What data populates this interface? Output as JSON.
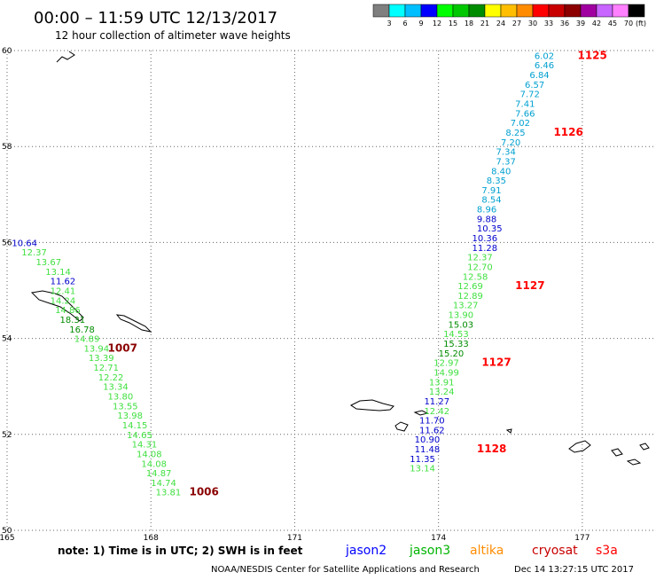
{
  "header": {
    "title": "00:00 – 11:59 UTC 12/13/2017",
    "subtitle": "12 hour collection of altimeter wave heights"
  },
  "colorbar": {
    "unit": "(ft)",
    "colors": [
      "#7f7f7f",
      "#00ffff",
      "#00bfff",
      "#0000ff",
      "#00ff00",
      "#00c800",
      "#008c00",
      "#ffff00",
      "#ffbf00",
      "#ff8c00",
      "#ff0000",
      "#c80000",
      "#8c0000",
      "#a000a0",
      "#c864ff",
      "#ff80ff",
      "#000000"
    ],
    "ticks": [
      "3",
      "6",
      "9",
      "12",
      "15",
      "18",
      "21",
      "24",
      "27",
      "30",
      "33",
      "36",
      "39",
      "42",
      "45",
      "70"
    ]
  },
  "note": "note:  1) Time is in UTC;  2) SWH is in feet",
  "satellites": [
    {
      "name": "jason2",
      "color": "#0000ff"
    },
    {
      "name": "jason3",
      "color": "#00b400"
    },
    {
      "name": "altika",
      "color": "#ff8c00"
    },
    {
      "name": "cryosat",
      "color": "#c80000"
    },
    {
      "name": "s3a",
      "color": "#ff0000"
    }
  ],
  "footer": {
    "credit": "NOAA/NESDIS Center for Satellite Applications and Research",
    "timestamp": "Dec 14 13:27:15 UTC 2017"
  },
  "chart_data": {
    "type": "scatter",
    "xlim": [
      165,
      178.5
    ],
    "ylim": [
      50,
      60
    ],
    "xticks": [
      165,
      168,
      171,
      174,
      177
    ],
    "yticks": [
      50,
      52,
      54,
      56,
      58,
      60
    ],
    "grid": true,
    "tracks": [
      {
        "points": [
          {
            "lon": 165.1,
            "lat": 56.0,
            "value": "10.64",
            "color": "#0000cd"
          },
          {
            "lon": 165.3,
            "lat": 55.8,
            "value": "12.37",
            "color": "#40e040"
          },
          {
            "lon": 165.6,
            "lat": 55.6,
            "value": "13.67",
            "color": "#40e040"
          },
          {
            "lon": 165.8,
            "lat": 55.4,
            "value": "13.14",
            "color": "#40e040"
          },
          {
            "lon": 165.9,
            "lat": 55.2,
            "value": "11.62",
            "color": "#0000cd"
          },
          {
            "lon": 165.9,
            "lat": 55.0,
            "value": "12.41",
            "color": "#40e040"
          },
          {
            "lon": 165.9,
            "lat": 54.8,
            "value": "14.24",
            "color": "#40e040"
          },
          {
            "lon": 166.0,
            "lat": 54.6,
            "value": "14.86",
            "color": "#40e040"
          },
          {
            "lon": 166.1,
            "lat": 54.4,
            "value": "18.31",
            "color": "#008c00"
          },
          {
            "lon": 166.3,
            "lat": 54.2,
            "value": "16.78",
            "color": "#008c00"
          },
          {
            "lon": 166.4,
            "lat": 54.0,
            "value": "14.89",
            "color": "#40e040"
          },
          {
            "lon": 166.6,
            "lat": 53.8,
            "value": "13.94",
            "color": "#40e040"
          },
          {
            "lon": 166.7,
            "lat": 53.6,
            "value": "13.39",
            "color": "#40e040"
          },
          {
            "lon": 166.8,
            "lat": 53.4,
            "value": "12.71",
            "color": "#40e040"
          },
          {
            "lon": 166.9,
            "lat": 53.2,
            "value": "12.22",
            "color": "#40e040"
          },
          {
            "lon": 167.0,
            "lat": 53.0,
            "value": "13.34",
            "color": "#40e040"
          },
          {
            "lon": 167.1,
            "lat": 52.8,
            "value": "13.80",
            "color": "#40e040"
          },
          {
            "lon": 167.2,
            "lat": 52.6,
            "value": "13.55",
            "color": "#40e040"
          },
          {
            "lon": 167.3,
            "lat": 52.4,
            "value": "13.98",
            "color": "#40e040"
          },
          {
            "lon": 167.4,
            "lat": 52.2,
            "value": "14.15",
            "color": "#40e040"
          },
          {
            "lon": 167.5,
            "lat": 52.0,
            "value": "14.65",
            "color": "#40e040"
          },
          {
            "lon": 167.6,
            "lat": 51.8,
            "value": "14.31",
            "color": "#40e040"
          },
          {
            "lon": 167.7,
            "lat": 51.6,
            "value": "14.08",
            "color": "#40e040"
          },
          {
            "lon": 167.8,
            "lat": 51.4,
            "value": "14.08",
            "color": "#40e040"
          },
          {
            "lon": 167.9,
            "lat": 51.2,
            "value": "14.87",
            "color": "#40e040"
          },
          {
            "lon": 168.0,
            "lat": 51.0,
            "value": "14.74",
            "color": "#40e040"
          },
          {
            "lon": 168.1,
            "lat": 50.8,
            "value": "13.81",
            "color": "#40e040"
          }
        ],
        "passes": [
          {
            "lon": 167.1,
            "lat": 53.8,
            "label": "1007",
            "color": "#8b0000"
          },
          {
            "lon": 168.8,
            "lat": 50.8,
            "label": "1006",
            "color": "#8b0000"
          }
        ]
      },
      {
        "points": [
          {
            "lon": 176.0,
            "lat": 59.9,
            "value": "6.02",
            "color": "#00a0d0"
          },
          {
            "lon": 176.0,
            "lat": 59.7,
            "value": "6.46",
            "color": "#00a0d0"
          },
          {
            "lon": 175.9,
            "lat": 59.5,
            "value": "6.84",
            "color": "#00a0d0"
          },
          {
            "lon": 175.8,
            "lat": 59.3,
            "value": "6.57",
            "color": "#00a0d0"
          },
          {
            "lon": 175.7,
            "lat": 59.1,
            "value": "7.72",
            "color": "#00a0d0"
          },
          {
            "lon": 175.6,
            "lat": 58.9,
            "value": "7.41",
            "color": "#00a0d0"
          },
          {
            "lon": 175.6,
            "lat": 58.7,
            "value": "7.66",
            "color": "#00a0d0"
          },
          {
            "lon": 175.5,
            "lat": 58.5,
            "value": "7.02",
            "color": "#00a0d0"
          },
          {
            "lon": 175.4,
            "lat": 58.3,
            "value": "8.25",
            "color": "#00a0d0"
          },
          {
            "lon": 175.3,
            "lat": 58.1,
            "value": "7.20",
            "color": "#00a0d0"
          },
          {
            "lon": 175.2,
            "lat": 57.9,
            "value": "7.34",
            "color": "#00a0d0"
          },
          {
            "lon": 175.2,
            "lat": 57.7,
            "value": "7.37",
            "color": "#00a0d0"
          },
          {
            "lon": 175.1,
            "lat": 57.5,
            "value": "8.40",
            "color": "#00a0d0"
          },
          {
            "lon": 175.0,
            "lat": 57.3,
            "value": "8.35",
            "color": "#00a0d0"
          },
          {
            "lon": 174.9,
            "lat": 57.1,
            "value": "7.91",
            "color": "#00a0d0"
          },
          {
            "lon": 174.9,
            "lat": 56.9,
            "value": "8.54",
            "color": "#00a0d0"
          },
          {
            "lon": 174.8,
            "lat": 56.7,
            "value": "8.96",
            "color": "#00a0d0"
          },
          {
            "lon": 174.8,
            "lat": 56.5,
            "value": "9.88",
            "color": "#0000cd"
          },
          {
            "lon": 174.8,
            "lat": 56.3,
            "value": "10.35",
            "color": "#0000cd"
          },
          {
            "lon": 174.7,
            "lat": 56.1,
            "value": "10.36",
            "color": "#0000cd"
          },
          {
            "lon": 174.7,
            "lat": 55.9,
            "value": "11.28",
            "color": "#0000cd"
          },
          {
            "lon": 174.6,
            "lat": 55.7,
            "value": "12.37",
            "color": "#40e040"
          },
          {
            "lon": 174.6,
            "lat": 55.5,
            "value": "12.70",
            "color": "#40e040"
          },
          {
            "lon": 174.5,
            "lat": 55.3,
            "value": "12.58",
            "color": "#40e040"
          },
          {
            "lon": 174.4,
            "lat": 55.1,
            "value": "12.69",
            "color": "#40e040"
          },
          {
            "lon": 174.4,
            "lat": 54.9,
            "value": "12.89",
            "color": "#40e040"
          },
          {
            "lon": 174.3,
            "lat": 54.7,
            "value": "13.27",
            "color": "#40e040"
          },
          {
            "lon": 174.2,
            "lat": 54.5,
            "value": "13.90",
            "color": "#40e040"
          },
          {
            "lon": 174.2,
            "lat": 54.3,
            "value": "15.03",
            "color": "#008c00"
          },
          {
            "lon": 174.1,
            "lat": 54.1,
            "value": "14.53",
            "color": "#40e040"
          },
          {
            "lon": 174.1,
            "lat": 53.9,
            "value": "15.33",
            "color": "#008c00"
          },
          {
            "lon": 174.0,
            "lat": 53.7,
            "value": "15.20",
            "color": "#008c00"
          },
          {
            "lon": 173.9,
            "lat": 53.5,
            "value": "12.97",
            "color": "#40e040"
          },
          {
            "lon": 173.9,
            "lat": 53.3,
            "value": "14.99",
            "color": "#40e040"
          },
          {
            "lon": 173.8,
            "lat": 53.1,
            "value": "13.91",
            "color": "#40e040"
          },
          {
            "lon": 173.8,
            "lat": 52.9,
            "value": "13.24",
            "color": "#40e040"
          },
          {
            "lon": 173.7,
            "lat": 52.7,
            "value": "11.27",
            "color": "#0000cd"
          },
          {
            "lon": 173.7,
            "lat": 52.5,
            "value": "12.42",
            "color": "#40e040"
          },
          {
            "lon": 173.6,
            "lat": 52.3,
            "value": "11.70",
            "color": "#0000cd"
          },
          {
            "lon": 173.6,
            "lat": 52.1,
            "value": "11.62",
            "color": "#0000cd"
          },
          {
            "lon": 173.5,
            "lat": 51.9,
            "value": "10.90",
            "color": "#0000cd"
          },
          {
            "lon": 173.5,
            "lat": 51.7,
            "value": "11.48",
            "color": "#0000cd"
          },
          {
            "lon": 173.4,
            "lat": 51.5,
            "value": "11.35",
            "color": "#0000cd"
          },
          {
            "lon": 173.4,
            "lat": 51.3,
            "value": "13.14",
            "color": "#40e040"
          }
        ],
        "passes": [
          {
            "lon": 176.9,
            "lat": 59.9,
            "label": "1125",
            "color": "#ff0000"
          },
          {
            "lon": 176.4,
            "lat": 58.3,
            "label": "1126",
            "color": "#ff0000"
          },
          {
            "lon": 175.6,
            "lat": 55.1,
            "label": "1127",
            "color": "#ff0000"
          },
          {
            "lon": 174.9,
            "lat": 53.5,
            "label": "1127",
            "color": "#ff0000"
          },
          {
            "lon": 174.8,
            "lat": 51.7,
            "label": "1128",
            "color": "#ff0000"
          }
        ]
      }
    ]
  }
}
